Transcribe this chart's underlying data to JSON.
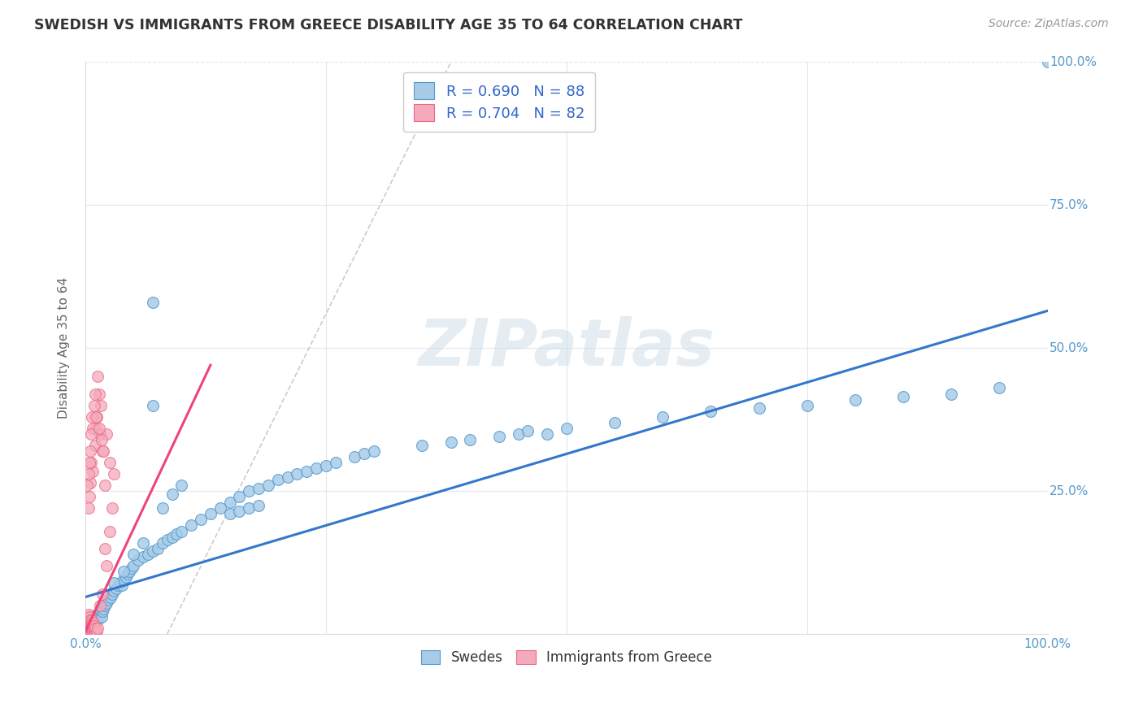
{
  "title": "SWEDISH VS IMMIGRANTS FROM GREECE DISABILITY AGE 35 TO 64 CORRELATION CHART",
  "source": "Source: ZipAtlas.com",
  "ylabel": "Disability Age 35 to 64",
  "xlim": [
    0,
    1.0
  ],
  "ylim": [
    0,
    1.0
  ],
  "swedes_color": "#a8cce8",
  "swedes_edge": "#5599cc",
  "immigrants_color": "#f4aabb",
  "immigrants_edge": "#ee6688",
  "trendline_swedes": "#3377cc",
  "trendline_immigrants": "#ee4477",
  "refline_color": "#cccccc",
  "watermark_color": "#ccdde8",
  "grid_color": "#e0e8f0",
  "tick_color": "#5599cc",
  "swedes_points": [
    [
      0.002,
      0.02
    ],
    [
      0.003,
      0.01
    ],
    [
      0.004,
      0.015
    ],
    [
      0.005,
      0.02
    ],
    [
      0.006,
      0.015
    ],
    [
      0.007,
      0.025
    ],
    [
      0.008,
      0.02
    ],
    [
      0.009,
      0.03
    ],
    [
      0.01,
      0.025
    ],
    [
      0.011,
      0.03
    ],
    [
      0.012,
      0.035
    ],
    [
      0.013,
      0.025
    ],
    [
      0.014,
      0.03
    ],
    [
      0.015,
      0.035
    ],
    [
      0.016,
      0.04
    ],
    [
      0.017,
      0.03
    ],
    [
      0.018,
      0.04
    ],
    [
      0.019,
      0.045
    ],
    [
      0.02,
      0.05
    ],
    [
      0.022,
      0.055
    ],
    [
      0.024,
      0.06
    ],
    [
      0.026,
      0.065
    ],
    [
      0.028,
      0.07
    ],
    [
      0.03,
      0.075
    ],
    [
      0.032,
      0.08
    ],
    [
      0.034,
      0.085
    ],
    [
      0.036,
      0.09
    ],
    [
      0.038,
      0.085
    ],
    [
      0.04,
      0.095
    ],
    [
      0.042,
      0.1
    ],
    [
      0.044,
      0.105
    ],
    [
      0.046,
      0.11
    ],
    [
      0.048,
      0.115
    ],
    [
      0.05,
      0.12
    ],
    [
      0.055,
      0.13
    ],
    [
      0.06,
      0.135
    ],
    [
      0.065,
      0.14
    ],
    [
      0.07,
      0.145
    ],
    [
      0.075,
      0.15
    ],
    [
      0.08,
      0.16
    ],
    [
      0.085,
      0.165
    ],
    [
      0.09,
      0.17
    ],
    [
      0.095,
      0.175
    ],
    [
      0.1,
      0.18
    ],
    [
      0.11,
      0.19
    ],
    [
      0.12,
      0.2
    ],
    [
      0.13,
      0.21
    ],
    [
      0.14,
      0.22
    ],
    [
      0.15,
      0.23
    ],
    [
      0.16,
      0.24
    ],
    [
      0.17,
      0.25
    ],
    [
      0.18,
      0.255
    ],
    [
      0.19,
      0.26
    ],
    [
      0.2,
      0.27
    ],
    [
      0.21,
      0.275
    ],
    [
      0.22,
      0.28
    ],
    [
      0.23,
      0.285
    ],
    [
      0.24,
      0.29
    ],
    [
      0.25,
      0.295
    ],
    [
      0.26,
      0.3
    ],
    [
      0.07,
      0.58
    ],
    [
      0.03,
      0.09
    ],
    [
      0.04,
      0.11
    ],
    [
      0.05,
      0.14
    ],
    [
      0.06,
      0.16
    ],
    [
      0.07,
      0.4
    ],
    [
      0.08,
      0.22
    ],
    [
      0.09,
      0.245
    ],
    [
      0.1,
      0.26
    ],
    [
      0.15,
      0.21
    ],
    [
      0.16,
      0.215
    ],
    [
      0.17,
      0.22
    ],
    [
      0.18,
      0.225
    ],
    [
      0.28,
      0.31
    ],
    [
      0.29,
      0.315
    ],
    [
      0.3,
      0.32
    ],
    [
      0.35,
      0.33
    ],
    [
      0.38,
      0.335
    ],
    [
      0.4,
      0.34
    ],
    [
      0.43,
      0.345
    ],
    [
      0.45,
      0.35
    ],
    [
      0.46,
      0.355
    ],
    [
      0.48,
      0.35
    ],
    [
      0.5,
      0.36
    ],
    [
      0.55,
      0.37
    ],
    [
      0.6,
      0.38
    ],
    [
      0.65,
      0.39
    ],
    [
      0.7,
      0.395
    ],
    [
      0.75,
      0.4
    ],
    [
      0.8,
      0.41
    ],
    [
      0.85,
      0.415
    ],
    [
      0.9,
      0.42
    ],
    [
      0.95,
      0.43
    ],
    [
      1.0,
      1.0
    ]
  ],
  "immigrants_points": [
    [
      0.001,
      0.005
    ],
    [
      0.001,
      0.01
    ],
    [
      0.001,
      0.015
    ],
    [
      0.002,
      0.005
    ],
    [
      0.002,
      0.01
    ],
    [
      0.002,
      0.015
    ],
    [
      0.002,
      0.02
    ],
    [
      0.002,
      0.025
    ],
    [
      0.003,
      0.005
    ],
    [
      0.003,
      0.01
    ],
    [
      0.003,
      0.015
    ],
    [
      0.003,
      0.02
    ],
    [
      0.003,
      0.025
    ],
    [
      0.003,
      0.03
    ],
    [
      0.003,
      0.035
    ],
    [
      0.004,
      0.005
    ],
    [
      0.004,
      0.01
    ],
    [
      0.004,
      0.015
    ],
    [
      0.004,
      0.02
    ],
    [
      0.004,
      0.025
    ],
    [
      0.004,
      0.03
    ],
    [
      0.005,
      0.005
    ],
    [
      0.005,
      0.01
    ],
    [
      0.005,
      0.015
    ],
    [
      0.005,
      0.02
    ],
    [
      0.005,
      0.025
    ],
    [
      0.006,
      0.005
    ],
    [
      0.006,
      0.01
    ],
    [
      0.006,
      0.015
    ],
    [
      0.006,
      0.02
    ],
    [
      0.007,
      0.005
    ],
    [
      0.007,
      0.01
    ],
    [
      0.007,
      0.015
    ],
    [
      0.007,
      0.02
    ],
    [
      0.007,
      0.025
    ],
    [
      0.008,
      0.005
    ],
    [
      0.008,
      0.01
    ],
    [
      0.008,
      0.015
    ],
    [
      0.008,
      0.02
    ],
    [
      0.009,
      0.005
    ],
    [
      0.009,
      0.01
    ],
    [
      0.009,
      0.015
    ],
    [
      0.01,
      0.005
    ],
    [
      0.01,
      0.01
    ],
    [
      0.012,
      0.005
    ],
    [
      0.013,
      0.01
    ],
    [
      0.015,
      0.05
    ],
    [
      0.018,
      0.07
    ],
    [
      0.02,
      0.15
    ],
    [
      0.022,
      0.12
    ],
    [
      0.025,
      0.18
    ],
    [
      0.028,
      0.22
    ],
    [
      0.03,
      0.28
    ],
    [
      0.012,
      0.38
    ],
    [
      0.014,
      0.42
    ],
    [
      0.008,
      0.285
    ],
    [
      0.006,
      0.3
    ],
    [
      0.005,
      0.265
    ],
    [
      0.003,
      0.22
    ],
    [
      0.004,
      0.24
    ],
    [
      0.01,
      0.33
    ],
    [
      0.011,
      0.36
    ],
    [
      0.015,
      0.35
    ],
    [
      0.02,
      0.26
    ],
    [
      0.018,
      0.32
    ],
    [
      0.022,
      0.35
    ],
    [
      0.025,
      0.3
    ],
    [
      0.016,
      0.4
    ],
    [
      0.013,
      0.45
    ],
    [
      0.01,
      0.42
    ],
    [
      0.008,
      0.36
    ],
    [
      0.007,
      0.38
    ],
    [
      0.005,
      0.32
    ],
    [
      0.006,
      0.35
    ],
    [
      0.004,
      0.3
    ],
    [
      0.003,
      0.28
    ],
    [
      0.002,
      0.26
    ],
    [
      0.009,
      0.4
    ],
    [
      0.011,
      0.38
    ],
    [
      0.014,
      0.36
    ],
    [
      0.017,
      0.34
    ],
    [
      0.019,
      0.32
    ]
  ],
  "swede_trend_x": [
    0.0,
    1.0
  ],
  "swede_trend_y": [
    0.065,
    0.565
  ],
  "immig_trend_x": [
    0.0,
    0.13
  ],
  "immig_trend_y": [
    0.005,
    0.47
  ],
  "refline_x": [
    0.085,
    0.38
  ],
  "refline_y": [
    0.0,
    1.0
  ]
}
